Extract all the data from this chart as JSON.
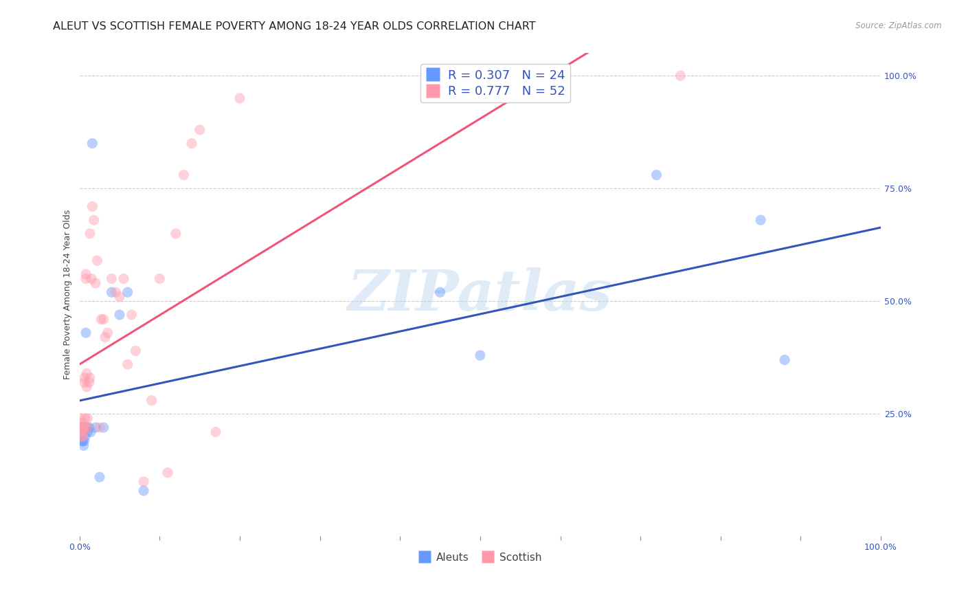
{
  "title": "ALEUT VS SCOTTISH FEMALE POVERTY AMONG 18-24 YEAR OLDS CORRELATION CHART",
  "source": "Source: ZipAtlas.com",
  "ylabel": "Female Poverty Among 18-24 Year Olds",
  "xlim": [
    0,
    1
  ],
  "ylim": [
    -0.02,
    1.05
  ],
  "xticks": [
    0,
    0.1,
    0.2,
    0.3,
    0.4,
    0.5,
    0.6,
    0.7,
    0.8,
    0.9,
    1.0
  ],
  "xticklabels": [
    "0.0%",
    "",
    "",
    "",
    "",
    "",
    "",
    "",
    "",
    "",
    "100.0%"
  ],
  "yticks": [
    0,
    0.25,
    0.5,
    0.75,
    1.0
  ],
  "yticklabels_right": [
    "",
    "25.0%",
    "50.0%",
    "75.0%",
    "100.0%"
  ],
  "grid_color": "#cccccc",
  "background": "#ffffff",
  "watermark": "ZIPatlas",
  "aleuts_color": "#6699ff",
  "scottish_color": "#ff99aa",
  "aleuts_R": 0.307,
  "aleuts_N": 24,
  "scottish_R": 0.777,
  "scottish_N": 52,
  "aleuts_line_color": "#3355bb",
  "scottish_line_color": "#ee5577",
  "aleuts_x": [
    0.002,
    0.003,
    0.004,
    0.005,
    0.006,
    0.007,
    0.008,
    0.009,
    0.01,
    0.012,
    0.014,
    0.016,
    0.02,
    0.025,
    0.03,
    0.04,
    0.05,
    0.06,
    0.08,
    0.45,
    0.5,
    0.72,
    0.85,
    0.88
  ],
  "aleuts_y": [
    0.21,
    0.19,
    0.19,
    0.18,
    0.19,
    0.2,
    0.43,
    0.22,
    0.21,
    0.22,
    0.21,
    0.85,
    0.22,
    0.11,
    0.22,
    0.52,
    0.47,
    0.52,
    0.08,
    0.52,
    0.38,
    0.78,
    0.68,
    0.37
  ],
  "scottish_x": [
    0.001,
    0.001,
    0.002,
    0.002,
    0.003,
    0.003,
    0.003,
    0.004,
    0.004,
    0.005,
    0.005,
    0.006,
    0.006,
    0.007,
    0.007,
    0.008,
    0.008,
    0.009,
    0.009,
    0.01,
    0.01,
    0.012,
    0.013,
    0.013,
    0.015,
    0.016,
    0.018,
    0.02,
    0.022,
    0.025,
    0.027,
    0.03,
    0.032,
    0.035,
    0.04,
    0.045,
    0.05,
    0.055,
    0.06,
    0.065,
    0.07,
    0.08,
    0.09,
    0.1,
    0.11,
    0.12,
    0.13,
    0.14,
    0.15,
    0.17,
    0.2,
    0.75
  ],
  "scottish_y": [
    0.22,
    0.24,
    0.21,
    0.22,
    0.2,
    0.22,
    0.23,
    0.2,
    0.22,
    0.21,
    0.22,
    0.32,
    0.33,
    0.22,
    0.24,
    0.55,
    0.56,
    0.31,
    0.34,
    0.22,
    0.24,
    0.32,
    0.33,
    0.65,
    0.55,
    0.71,
    0.68,
    0.54,
    0.59,
    0.22,
    0.46,
    0.46,
    0.42,
    0.43,
    0.55,
    0.52,
    0.51,
    0.55,
    0.36,
    0.47,
    0.39,
    0.1,
    0.28,
    0.55,
    0.12,
    0.65,
    0.78,
    0.85,
    0.88,
    0.21,
    0.95,
    1.0
  ],
  "marker_size": 120,
  "marker_alpha": 0.45,
  "title_fontsize": 11.5,
  "axis_label_fontsize": 9,
  "tick_fontsize": 9,
  "legend_fontsize": 13,
  "tick_color": "#3355bb"
}
